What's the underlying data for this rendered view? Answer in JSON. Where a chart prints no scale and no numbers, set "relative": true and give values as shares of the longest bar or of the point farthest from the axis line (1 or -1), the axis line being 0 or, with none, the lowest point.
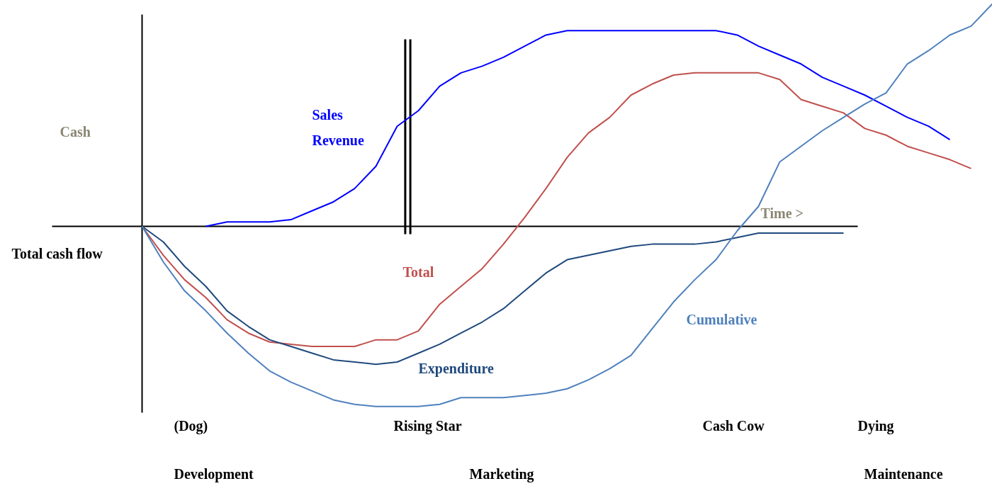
{
  "chart_data": {
    "type": "line",
    "relative": true,
    "ylabel": "Cash",
    "xlabel": "Time >",
    "grid": false,
    "marker": "none",
    "line_style": "solid",
    "categories": [
      null,
      null,
      null,
      null,
      null,
      null,
      null,
      null,
      null,
      null,
      null,
      null,
      null,
      null,
      null,
      null,
      null,
      null,
      null,
      null,
      null,
      null,
      null,
      null,
      null,
      null,
      null,
      null,
      null,
      null,
      null,
      null,
      null,
      null,
      null,
      null,
      null,
      null,
      null,
      null,
      null
    ],
    "series": [
      {
        "name": "Sales Revenue",
        "color": "#0000ff",
        "values": [
          null,
          null,
          null,
          0,
          0.02,
          0.02,
          0.02,
          0.03,
          0.07,
          0.11,
          0.17,
          0.27,
          0.45,
          0.52,
          0.63,
          0.69,
          0.72,
          0.76,
          0.81,
          0.86,
          0.88,
          0.88,
          0.88,
          0.88,
          0.88,
          0.88,
          0.88,
          0.88,
          0.86,
          0.81,
          0.77,
          0.73,
          0.67,
          0.63,
          0.59,
          0.54,
          0.49,
          0.45,
          0.39,
          null,
          null
        ]
      },
      {
        "name": "Total",
        "color": "#c0504d",
        "values": [
          0,
          -0.13,
          -0.24,
          -0.32,
          -0.42,
          -0.48,
          -0.52,
          -0.53,
          -0.54,
          -0.54,
          -0.54,
          -0.51,
          -0.51,
          -0.47,
          -0.35,
          -0.27,
          -0.19,
          -0.08,
          0.04,
          0.17,
          0.31,
          0.42,
          0.49,
          0.59,
          0.64,
          0.68,
          0.69,
          0.69,
          0.69,
          0.69,
          0.66,
          0.57,
          0.54,
          0.51,
          0.44,
          0.41,
          0.36,
          0.33,
          0.3,
          0.26,
          null
        ]
      },
      {
        "name": "Expenditure",
        "color": "#1f497d",
        "values": [
          0,
          -0.07,
          -0.18,
          -0.27,
          -0.38,
          -0.45,
          -0.51,
          -0.54,
          -0.57,
          -0.6,
          -0.61,
          -0.62,
          -0.61,
          -0.57,
          -0.53,
          -0.48,
          -0.43,
          -0.37,
          -0.29,
          -0.21,
          -0.15,
          -0.13,
          -0.11,
          -0.09,
          -0.08,
          -0.08,
          -0.08,
          -0.07,
          -0.05,
          -0.03,
          -0.03,
          -0.03,
          -0.03,
          -0.03,
          null,
          null,
          null,
          null,
          null,
          null,
          null
        ]
      },
      {
        "name": "Cumulative",
        "color": "#4f81bd",
        "values": [
          0,
          -0.16,
          -0.29,
          -0.38,
          -0.48,
          -0.57,
          -0.65,
          -0.7,
          -0.74,
          -0.78,
          -0.8,
          -0.81,
          -0.81,
          -0.81,
          -0.8,
          -0.77,
          -0.77,
          -0.77,
          -0.76,
          -0.75,
          -0.73,
          -0.69,
          -0.64,
          -0.58,
          -0.46,
          -0.34,
          -0.24,
          -0.15,
          -0.02,
          0.09,
          0.29,
          0.36,
          0.43,
          0.49,
          0.55,
          0.6,
          0.73,
          0.79,
          0.86,
          0.9,
          1.0
        ]
      }
    ],
    "annotations": [
      "Total cash flow",
      "(Dog)",
      "Rising Star",
      "Cash Cow",
      "Dying",
      "Development",
      "Marketing",
      "Maintenance"
    ]
  }
}
